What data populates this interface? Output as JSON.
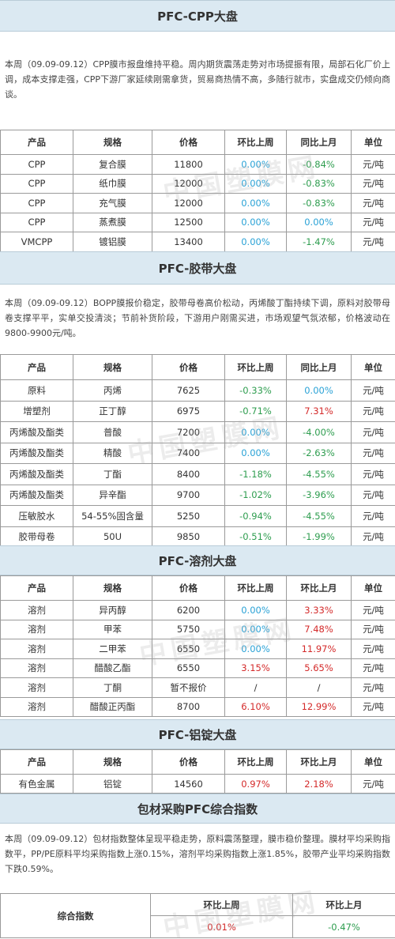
{
  "cpp": {
    "title": "PFC-CPP大盘",
    "intro": "本周（09.09-09.12）CPP膜市报盘维持平稳。周内期货震荡走势对市场提振有限，局部石化厂价上调，成本支撑走强，CPP下游厂家延续刚需拿货，贸易商热情不高，多随行就市，实盘成交仍倾向商谈。",
    "headers": [
      "产品",
      "规格",
      "价格",
      "环比上周",
      "同比上月",
      "单位"
    ],
    "rows": [
      {
        "product": "CPP",
        "spec": "复合膜",
        "price": "11800",
        "wow": "0.00%",
        "wow_c": "blue",
        "mom": "-0.84%",
        "mom_c": "green",
        "unit": "元/吨"
      },
      {
        "product": "CPP",
        "spec": "纸巾膜",
        "price": "12000",
        "wow": "0.00%",
        "wow_c": "blue",
        "mom": "-0.83%",
        "mom_c": "green",
        "unit": "元/吨"
      },
      {
        "product": "CPP",
        "spec": "充气膜",
        "price": "12000",
        "wow": "0.00%",
        "wow_c": "blue",
        "mom": "-0.83%",
        "mom_c": "green",
        "unit": "元/吨"
      },
      {
        "product": "CPP",
        "spec": "蒸煮膜",
        "price": "12500",
        "wow": "0.00%",
        "wow_c": "blue",
        "mom": "0.00%",
        "mom_c": "blue",
        "unit": "元/吨"
      },
      {
        "product": "VMCPP",
        "spec": "镀铝膜",
        "price": "13400",
        "wow": "0.00%",
        "wow_c": "blue",
        "mom": "-1.47%",
        "mom_c": "green",
        "unit": "元/吨"
      }
    ]
  },
  "tape": {
    "title": "PFC-胶带大盘",
    "intro": "本周（09.09-09.12）BOPP膜报价稳定，胶带母卷高价松动，丙烯酸丁酯持续下调，原料对胶带母卷支撑平平，实单交投清淡；节前补货阶段，下游用户刚需买进，市场观望气氛浓郁，价格波动在9800-9900元/吨。",
    "headers": [
      "产品",
      "规格",
      "价格",
      "环比上周",
      "同比上月",
      "单位"
    ],
    "rows": [
      {
        "product": "原料",
        "spec": "丙烯",
        "price": "7625",
        "wow": "-0.33%",
        "wow_c": "green",
        "mom": "0.00%",
        "mom_c": "blue",
        "unit": "元/吨"
      },
      {
        "product": "增塑剂",
        "spec": "正丁醇",
        "price": "6975",
        "wow": "-0.71%",
        "wow_c": "green",
        "mom": "7.31%",
        "mom_c": "red",
        "unit": "元/吨"
      },
      {
        "product": "丙烯酸及酯类",
        "spec": "普酸",
        "price": "7200",
        "wow": "0.00%",
        "wow_c": "blue",
        "mom": "-4.00%",
        "mom_c": "green",
        "unit": "元/吨"
      },
      {
        "product": "丙烯酸及酯类",
        "spec": "精酸",
        "price": "7400",
        "wow": "0.00%",
        "wow_c": "blue",
        "mom": "-2.63%",
        "mom_c": "green",
        "unit": "元/吨"
      },
      {
        "product": "丙烯酸及酯类",
        "spec": "丁酯",
        "price": "8400",
        "wow": "-1.18%",
        "wow_c": "green",
        "mom": "-4.55%",
        "mom_c": "green",
        "unit": "元/吨"
      },
      {
        "product": "丙烯酸及酯类",
        "spec": "异辛酯",
        "price": "9700",
        "wow": "-1.02%",
        "wow_c": "green",
        "mom": "-3.96%",
        "mom_c": "green",
        "unit": "元/吨"
      },
      {
        "product": "压敏胶水",
        "spec": "54-55%固含量",
        "price": "5250",
        "wow": "-0.94%",
        "wow_c": "green",
        "mom": "-4.55%",
        "mom_c": "green",
        "unit": "元/吨"
      },
      {
        "product": "胶带母卷",
        "spec": "50U",
        "price": "9850",
        "wow": "-0.51%",
        "wow_c": "green",
        "mom": "-1.99%",
        "mom_c": "green",
        "unit": "元/吨"
      }
    ]
  },
  "solvent": {
    "title": "PFC-溶剂大盘",
    "headers": [
      "产品",
      "规格",
      "价格",
      "环比上周",
      "环比上月",
      "单位"
    ],
    "rows": [
      {
        "product": "溶剂",
        "spec": "异丙醇",
        "price": "6200",
        "wow": "0.00%",
        "wow_c": "blue",
        "mom": "3.33%",
        "mom_c": "red",
        "unit": "元/吨"
      },
      {
        "product": "溶剂",
        "spec": "甲苯",
        "price": "5750",
        "wow": "0.00%",
        "wow_c": "blue",
        "mom": "7.48%",
        "mom_c": "red",
        "unit": "元/吨"
      },
      {
        "product": "溶剂",
        "spec": "二甲苯",
        "price": "6550",
        "wow": "0.00%",
        "wow_c": "blue",
        "mom": "11.97%",
        "mom_c": "red",
        "unit": "元/吨"
      },
      {
        "product": "溶剂",
        "spec": "醋酸乙酯",
        "price": "6550",
        "wow": "3.15%",
        "wow_c": "red",
        "mom": "5.65%",
        "mom_c": "red",
        "unit": "元/吨"
      },
      {
        "product": "溶剂",
        "spec": "丁酮",
        "price": "暂不报价",
        "wow": "/",
        "wow_c": "neutral",
        "mom": "/",
        "mom_c": "neutral",
        "unit": "元/吨"
      },
      {
        "product": "溶剂",
        "spec": "醋酸正丙酯",
        "price": "8700",
        "wow": "6.10%",
        "wow_c": "red",
        "mom": "12.99%",
        "mom_c": "red",
        "unit": "元/吨"
      }
    ]
  },
  "aluminum": {
    "title": "PFC-铝锭大盘",
    "headers": [
      "产品",
      "规格",
      "价格",
      "环比上周",
      "环比上月",
      "单位"
    ],
    "rows": [
      {
        "product": "有色金属",
        "spec": "铝锭",
        "price": "14560",
        "wow": "0.97%",
        "wow_c": "red",
        "mom": "2.18%",
        "mom_c": "red",
        "unit": "元/吨"
      }
    ]
  },
  "index": {
    "title": "包材采购PFC综合指数",
    "intro": "本周（09.09-09.12）包材指数整体呈现平稳走势，原料震荡整理，膜市稳价整理。膜材平均采购指数平，PP/PE原料平均采购指数上涨0.15%，溶剂平均采购指数上涨1.85%，胶带产业平均采购指数下跌0.59%。",
    "label": "综合指数",
    "col_wow": "环比上周",
    "col_mom": "环比上月",
    "wow": "0.01%",
    "mom": "-0.47%"
  },
  "watermark": "中国塑膜网",
  "colors": {
    "blue": "#2aa2d6",
    "green": "#2e9d4f",
    "red": "#d42a2a",
    "header_bg": "#dbe9f2"
  }
}
